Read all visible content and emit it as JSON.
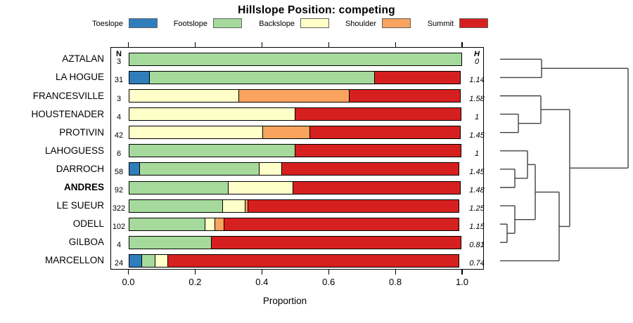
{
  "title": "Hillslope Position: competing",
  "headers": {
    "n": "N",
    "h": "H"
  },
  "axis": {
    "xlabel": "Proportion"
  },
  "legend": {
    "items": [
      {
        "label": "Toeslope",
        "color": "#2F7EBC"
      },
      {
        "label": "Footslope",
        "color": "#A5DA9C"
      },
      {
        "label": "Backslope",
        "color": "#FFFFC9"
      },
      {
        "label": "Shoulder",
        "color": "#F8A35E"
      },
      {
        "label": "Summit",
        "color": "#D6201F"
      }
    ]
  },
  "chart_data": {
    "type": "bar",
    "stacked": true,
    "orientation": "horizontal",
    "title": "Hillslope Position: competing",
    "xlabel": "Proportion",
    "xlim": [
      0.0,
      1.0
    ],
    "x_ticks": [
      0.0,
      0.2,
      0.4,
      0.6,
      0.8,
      1.0
    ],
    "categories": [
      "Toeslope",
      "Footslope",
      "Backslope",
      "Shoulder",
      "Summit"
    ],
    "colors": {
      "Toeslope": "#2F7EBC",
      "Footslope": "#A5DA9C",
      "Backslope": "#FFFFC9",
      "Shoulder": "#F8A35E",
      "Summit": "#D6201F"
    },
    "rows": [
      {
        "label": "AZTALAN",
        "n": "3",
        "h": "0",
        "bold": false,
        "segments": [
          {
            "category": "Footslope",
            "value": 1.0
          }
        ]
      },
      {
        "label": "LA HOGUE",
        "n": "31",
        "h": "1.14",
        "bold": false,
        "segments": [
          {
            "category": "Toeslope",
            "value": 0.0645
          },
          {
            "category": "Footslope",
            "value": 0.6775
          },
          {
            "category": "Summit",
            "value": 0.258
          }
        ]
      },
      {
        "label": "FRANCESVILLE",
        "n": "3",
        "h": "1.58",
        "bold": false,
        "segments": [
          {
            "category": "Backslope",
            "value": 0.3333
          },
          {
            "category": "Shoulder",
            "value": 0.3334
          },
          {
            "category": "Summit",
            "value": 0.3333
          }
        ]
      },
      {
        "label": "HOUSTENADER",
        "n": "4",
        "h": "1",
        "bold": false,
        "segments": [
          {
            "category": "Backslope",
            "value": 0.5
          },
          {
            "category": "Summit",
            "value": 0.5
          }
        ]
      },
      {
        "label": "PROTIVIN",
        "n": "42",
        "h": "1.45",
        "bold": false,
        "segments": [
          {
            "category": "Backslope",
            "value": 0.405
          },
          {
            "category": "Shoulder",
            "value": 0.143
          },
          {
            "category": "Summit",
            "value": 0.452
          }
        ]
      },
      {
        "label": "LAHOGUESS",
        "n": "6",
        "h": "1",
        "bold": false,
        "segments": [
          {
            "category": "Footslope",
            "value": 0.5
          },
          {
            "category": "Summit",
            "value": 0.5
          }
        ]
      },
      {
        "label": "DARROCH",
        "n": "58",
        "h": "1.45",
        "bold": false,
        "segments": [
          {
            "category": "Toeslope",
            "value": 0.0345
          },
          {
            "category": "Footslope",
            "value": 0.3625
          },
          {
            "category": "Backslope",
            "value": 0.069
          },
          {
            "category": "Summit",
            "value": 0.534
          }
        ]
      },
      {
        "label": "ANDRES",
        "n": "92",
        "h": "1.48",
        "bold": true,
        "segments": [
          {
            "category": "Footslope",
            "value": 0.3
          },
          {
            "category": "Backslope",
            "value": 0.198
          },
          {
            "category": "Summit",
            "value": 0.502
          }
        ]
      },
      {
        "label": "LE SUEUR",
        "n": "322",
        "h": "1.25",
        "bold": false,
        "segments": [
          {
            "category": "Footslope",
            "value": 0.283
          },
          {
            "category": "Backslope",
            "value": 0.07
          },
          {
            "category": "Shoulder",
            "value": 0.011
          },
          {
            "category": "Summit",
            "value": 0.636
          }
        ]
      },
      {
        "label": "ODELL",
        "n": "102",
        "h": "1.15",
        "bold": false,
        "segments": [
          {
            "category": "Footslope",
            "value": 0.2315
          },
          {
            "category": "Backslope",
            "value": 0.0315
          },
          {
            "category": "Shoulder",
            "value": 0.03
          },
          {
            "category": "Summit",
            "value": 0.707
          }
        ]
      },
      {
        "label": "GILBOA",
        "n": "4",
        "h": "0.81",
        "bold": false,
        "segments": [
          {
            "category": "Footslope",
            "value": 0.25
          },
          {
            "category": "Summit",
            "value": 0.75
          }
        ]
      },
      {
        "label": "MARCELLON",
        "n": "24",
        "h": "0.74",
        "bold": false,
        "segments": [
          {
            "category": "Toeslope",
            "value": 0.0417
          },
          {
            "category": "Footslope",
            "value": 0.0417
          },
          {
            "category": "Backslope",
            "value": 0.0417
          },
          {
            "category": "Summit",
            "value": 0.8749
          }
        ]
      }
    ],
    "dendrogram": {
      "leaf_order": [
        "AZTALAN",
        "LA HOGUE",
        "FRANCESVILLE",
        "HOUSTENADER",
        "PROTIVIN",
        "LAHOGUESS",
        "DARROCH",
        "ANDRES",
        "LE SUEUR",
        "ODELL",
        "GILBOA",
        "MARCELLON"
      ],
      "merges": [
        {
          "id": "M1",
          "children": [
            "L0",
            "L1"
          ],
          "x": 770
        },
        {
          "id": "M2",
          "children": [
            "L3",
            "L4"
          ],
          "x": 737
        },
        {
          "id": "M3",
          "children": [
            "L2",
            "M2"
          ],
          "x": 769
        },
        {
          "id": "M4",
          "children": [
            "L6",
            "L7"
          ],
          "x": 732
        },
        {
          "id": "M5",
          "children": [
            "L5",
            "M4"
          ],
          "x": 750
        },
        {
          "id": "M6",
          "children": [
            "L9",
            "L10"
          ],
          "x": 721
        },
        {
          "id": "M7",
          "children": [
            "L8",
            "M6"
          ],
          "x": 732
        },
        {
          "id": "M8",
          "children": [
            "M5",
            "M7"
          ],
          "x": 761
        },
        {
          "id": "M9",
          "children": [
            "M8",
            "L11"
          ],
          "x": 795
        },
        {
          "id": "M10",
          "children": [
            "M3",
            "M9"
          ],
          "x": 810
        },
        {
          "id": "ROOT",
          "children": [
            "M1",
            "M10"
          ],
          "x": 893
        }
      ]
    }
  }
}
